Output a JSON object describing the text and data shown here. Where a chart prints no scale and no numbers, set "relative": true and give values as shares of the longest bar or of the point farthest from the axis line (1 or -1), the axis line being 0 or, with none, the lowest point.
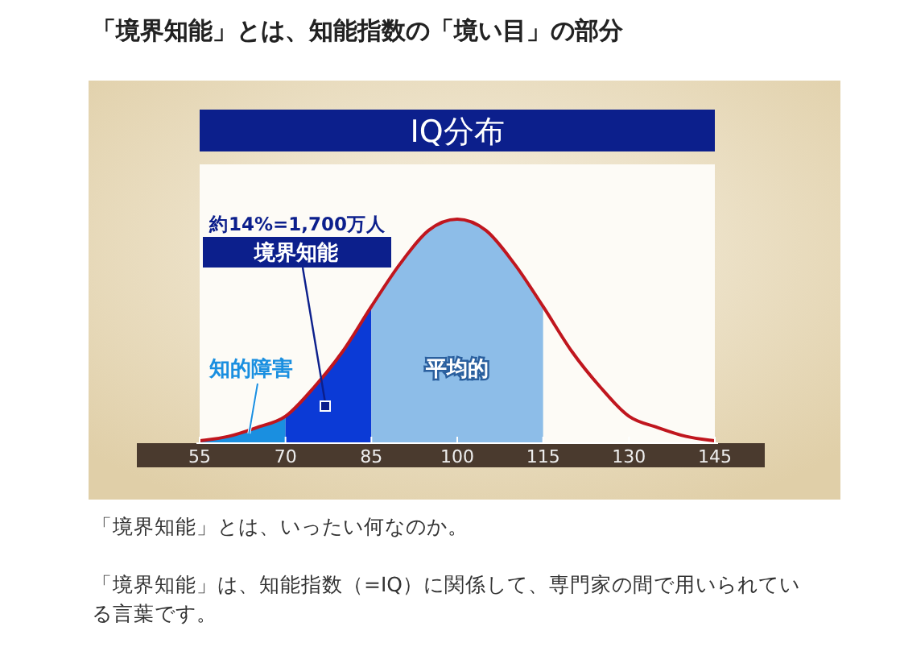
{
  "chart_data": {
    "type": "line",
    "title": "「境界知能」とは、知能指数の「境い目」の部分",
    "subtitle": "IQ分布",
    "annotations": [
      "約14%=1,700万人",
      "「境界知能」とは、いったい何なのか。",
      "「境界知能」は、知能指数（=IQ）に関係して、専門家の間で用いられている言葉です。"
    ],
    "relative": true,
    "xlim": [
      55,
      145
    ],
    "xticks": [
      55,
      70,
      85,
      100,
      115,
      130,
      145
    ],
    "series": [
      {
        "name": "知的障害",
        "type": "area",
        "color": "#1a8fe0",
        "x": [
          55,
          60,
          65,
          70
        ],
        "values": [
          0.01,
          0.03,
          0.07,
          0.12
        ]
      },
      {
        "name": "境界知能",
        "type": "area",
        "color": "#0b3ad6",
        "x": [
          70,
          75,
          80,
          85
        ],
        "values": [
          0.12,
          0.25,
          0.41,
          0.61
        ]
      },
      {
        "name": "平均的",
        "type": "area",
        "color": "#8dbde8",
        "x": [
          85,
          90,
          95,
          100,
          105,
          110,
          115
        ],
        "values": [
          0.61,
          0.8,
          0.95,
          1,
          0.95,
          0.8,
          0.61
        ]
      },
      {
        "color": "#c0161e",
        "x": [
          55,
          60,
          65,
          70,
          75,
          80,
          85,
          90,
          95,
          100,
          105,
          110,
          115,
          120,
          125,
          130,
          135,
          140,
          145
        ],
        "values": [
          0.01,
          0.03,
          0.07,
          0.12,
          0.25,
          0.41,
          0.61,
          0.8,
          0.95,
          1,
          0.95,
          0.8,
          0.61,
          0.41,
          0.25,
          0.12,
          0.07,
          0.03,
          0.01
        ]
      }
    ]
  }
}
